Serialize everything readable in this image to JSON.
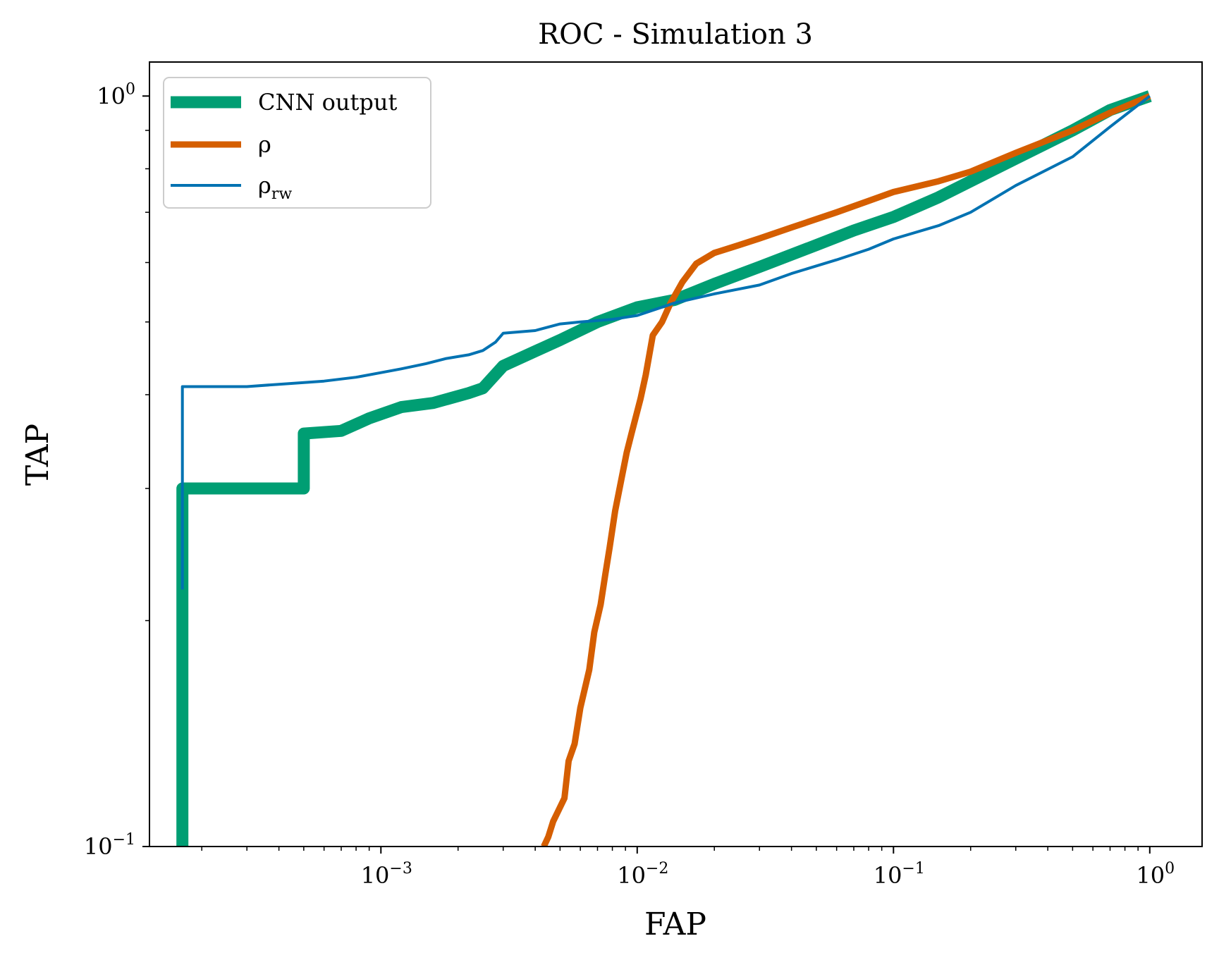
{
  "chart_data": {
    "type": "line",
    "title": "ROC - Simulation 3",
    "xlabel": "FAP",
    "ylabel": "TAP",
    "xscale": "log",
    "yscale": "log",
    "xlim": [
      0.000125,
      1.6
    ],
    "ylim": [
      0.1,
      1.11
    ],
    "grid": false,
    "legend_position": "top-left",
    "x_ticks": [
      {
        "value": 0.001,
        "base": "10",
        "exp": "−3"
      },
      {
        "value": 0.01,
        "base": "10",
        "exp": "−2"
      },
      {
        "value": 0.1,
        "base": "10",
        "exp": "−1"
      },
      {
        "value": 1,
        "base": "10",
        "exp": "0"
      }
    ],
    "y_ticks": [
      {
        "value": 0.1,
        "base": "10",
        "exp": "−1"
      },
      {
        "value": 1,
        "base": "10",
        "exp": "0"
      }
    ],
    "series": [
      {
        "name": "CNN output",
        "color": "#009E73",
        "line_width": 17,
        "points": [
          [
            0.000168,
            0.1
          ],
          [
            0.000168,
            0.3
          ],
          [
            0.0003,
            0.3
          ],
          [
            0.0005,
            0.3
          ],
          [
            0.0005,
            0.355
          ],
          [
            0.0007,
            0.358
          ],
          [
            0.0009,
            0.372
          ],
          [
            0.0012,
            0.385
          ],
          [
            0.0016,
            0.39
          ],
          [
            0.0022,
            0.402
          ],
          [
            0.0025,
            0.408
          ],
          [
            0.003,
            0.437
          ],
          [
            0.004,
            0.457
          ],
          [
            0.005,
            0.473
          ],
          [
            0.007,
            0.5
          ],
          [
            0.01,
            0.523
          ],
          [
            0.014,
            0.535
          ],
          [
            0.02,
            0.562
          ],
          [
            0.03,
            0.592
          ],
          [
            0.05,
            0.633
          ],
          [
            0.07,
            0.662
          ],
          [
            0.1,
            0.69
          ],
          [
            0.15,
            0.733
          ],
          [
            0.2,
            0.77
          ],
          [
            0.3,
            0.825
          ],
          [
            0.5,
            0.9
          ],
          [
            0.7,
            0.958
          ],
          [
            1.0,
            1.0
          ]
        ]
      },
      {
        "name": "ρ",
        "color": "#D55E00",
        "line_width": 9,
        "points": [
          [
            0.00432,
            0.1
          ],
          [
            0.0045,
            0.103
          ],
          [
            0.0047,
            0.108
          ],
          [
            0.0052,
            0.116
          ],
          [
            0.0054,
            0.13
          ],
          [
            0.0057,
            0.137
          ],
          [
            0.006,
            0.153
          ],
          [
            0.0065,
            0.172
          ],
          [
            0.0068,
            0.193
          ],
          [
            0.0072,
            0.21
          ],
          [
            0.0075,
            0.23
          ],
          [
            0.0078,
            0.25
          ],
          [
            0.0082,
            0.28
          ],
          [
            0.0087,
            0.31
          ],
          [
            0.0091,
            0.335
          ],
          [
            0.0095,
            0.355
          ],
          [
            0.0103,
            0.395
          ],
          [
            0.0108,
            0.425
          ],
          [
            0.0115,
            0.48
          ],
          [
            0.0125,
            0.5
          ],
          [
            0.0135,
            0.53
          ],
          [
            0.015,
            0.565
          ],
          [
            0.017,
            0.598
          ],
          [
            0.02,
            0.618
          ],
          [
            0.025,
            0.633
          ],
          [
            0.03,
            0.646
          ],
          [
            0.04,
            0.668
          ],
          [
            0.06,
            0.7
          ],
          [
            0.08,
            0.725
          ],
          [
            0.1,
            0.745
          ],
          [
            0.15,
            0.77
          ],
          [
            0.2,
            0.793
          ],
          [
            0.3,
            0.84
          ],
          [
            0.5,
            0.9
          ],
          [
            0.7,
            0.95
          ],
          [
            1.0,
            1.0
          ]
        ]
      },
      {
        "name": "ρ",
        "name_sub": "rw",
        "color": "#0072B2",
        "line_width": 4,
        "points": [
          [
            0.000168,
            0.22
          ],
          [
            0.000168,
            0.41
          ],
          [
            0.0003,
            0.41
          ],
          [
            0.0004,
            0.413
          ],
          [
            0.0006,
            0.417
          ],
          [
            0.0008,
            0.422
          ],
          [
            0.001,
            0.428
          ],
          [
            0.0012,
            0.433
          ],
          [
            0.0015,
            0.44
          ],
          [
            0.0018,
            0.447
          ],
          [
            0.0022,
            0.452
          ],
          [
            0.0025,
            0.458
          ],
          [
            0.0028,
            0.47
          ],
          [
            0.003,
            0.483
          ],
          [
            0.004,
            0.487
          ],
          [
            0.005,
            0.497
          ],
          [
            0.006,
            0.5
          ],
          [
            0.008,
            0.504
          ],
          [
            0.01,
            0.51
          ],
          [
            0.014,
            0.53
          ],
          [
            0.02,
            0.545
          ],
          [
            0.03,
            0.56
          ],
          [
            0.04,
            0.58
          ],
          [
            0.06,
            0.605
          ],
          [
            0.08,
            0.625
          ],
          [
            0.1,
            0.645
          ],
          [
            0.15,
            0.672
          ],
          [
            0.2,
            0.7
          ],
          [
            0.3,
            0.76
          ],
          [
            0.5,
            0.83
          ],
          [
            0.7,
            0.91
          ],
          [
            1.0,
            1.0
          ]
        ]
      }
    ]
  }
}
